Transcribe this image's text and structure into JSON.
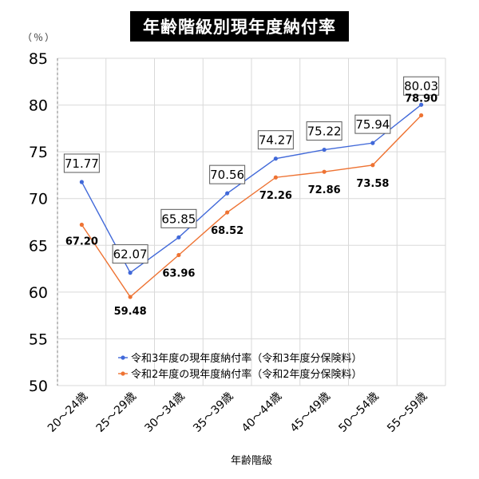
{
  "chart_data": {
    "type": "line",
    "title": "年齢階級別現年度納付率",
    "unit_label": "（％）",
    "xlabel": "年齢階級",
    "ylabel": "",
    "ylim": [
      50,
      85
    ],
    "yticks": [
      "50",
      "55",
      "60",
      "65",
      "70",
      "75",
      "80",
      "85"
    ],
    "categories": [
      "20～24歳",
      "25～29歳",
      "30～34歳",
      "35～39歳",
      "40～44歳",
      "45～49歳",
      "50～54歳",
      "55～59歳"
    ],
    "grid": true,
    "legend_placement": "bottom-center",
    "series": [
      {
        "name": "令和3年度の現年度納付率（令和3年度分保険料）",
        "color": "#4169d9",
        "values": [
          71.77,
          62.07,
          65.85,
          70.56,
          74.27,
          75.22,
          75.94,
          80.03
        ],
        "labels": [
          "71.77",
          "62.07",
          "65.85",
          "70.56",
          "74.27",
          "75.22",
          "75.94",
          "80.03"
        ]
      },
      {
        "name": "令和2年度の現年度納付率（令和2年度分保険料）",
        "color": "#ee7333",
        "values": [
          67.2,
          59.48,
          63.96,
          68.52,
          72.26,
          72.86,
          73.58,
          78.9
        ],
        "labels": [
          "67.20",
          "59.48",
          "63.96",
          "68.52",
          "72.26",
          "72.86",
          "73.58",
          "78.90"
        ]
      }
    ]
  }
}
